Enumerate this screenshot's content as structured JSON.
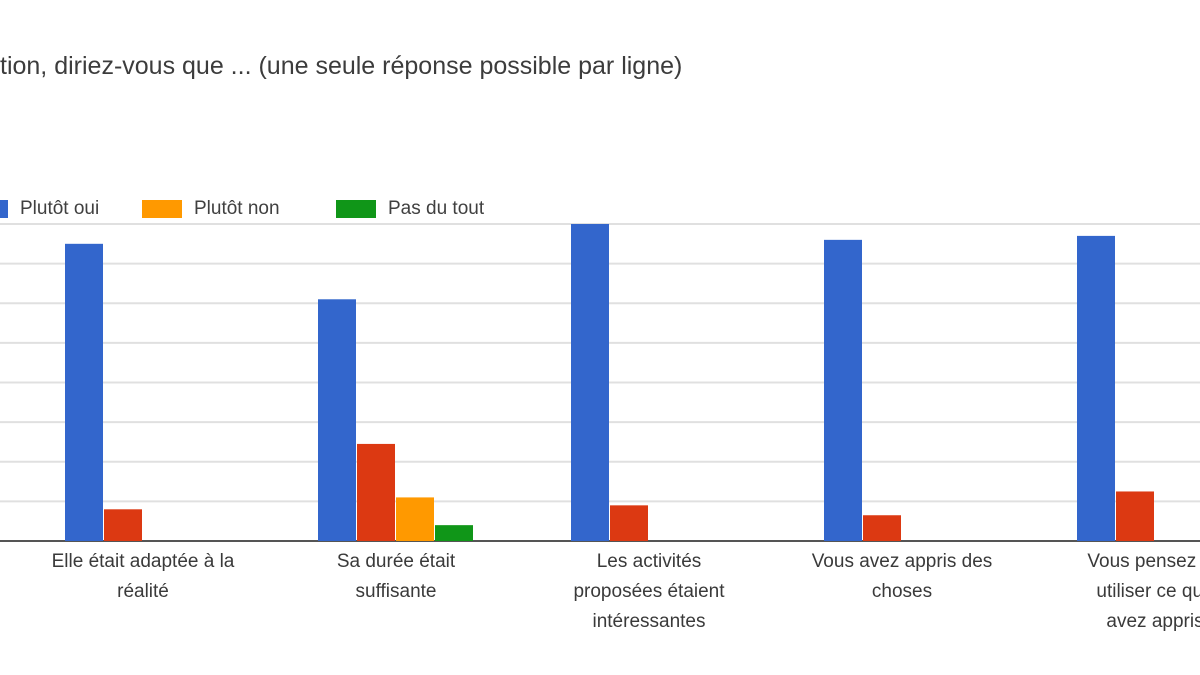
{
  "chart_data": {
    "type": "bar",
    "title": "tion, diriez-vous que ... (une seule réponse possible par ligne)",
    "categories": [
      [
        "Elle était adaptée à la",
        "réalité"
      ],
      [
        "Sa durée était",
        "suffisante"
      ],
      [
        "Les activités",
        "proposées étaient",
        "intéressantes"
      ],
      [
        "Vous avez appris des",
        "choses"
      ],
      [
        "Vous pensez po",
        "utiliser ce que",
        "avez appris"
      ]
    ],
    "series": [
      {
        "name": "",
        "color": "#3366cc",
        "values": [
          30,
          24.4,
          32,
          30.4,
          30.8
        ]
      },
      {
        "name": "",
        "color": "#dc3912",
        "values": [
          3.2,
          9.8,
          3.6,
          2.6,
          5
        ]
      },
      {
        "name": "Plutôt non",
        "color": "#ff9900",
        "values": [
          0,
          4.4,
          0,
          0,
          0
        ]
      },
      {
        "name": "Pas du tout",
        "color": "#109618",
        "values": [
          0,
          1.6,
          0,
          0,
          0
        ]
      }
    ],
    "legend": {
      "position": "top",
      "visible_items": [
        {
          "label": "Plutôt oui",
          "color": "#3366cc"
        },
        {
          "label": "Plutôt non",
          "color": "#ff9900"
        },
        {
          "label": "Pas du tout",
          "color": "#109618"
        }
      ]
    },
    "ylim": [
      0,
      32
    ],
    "grid": true
  }
}
